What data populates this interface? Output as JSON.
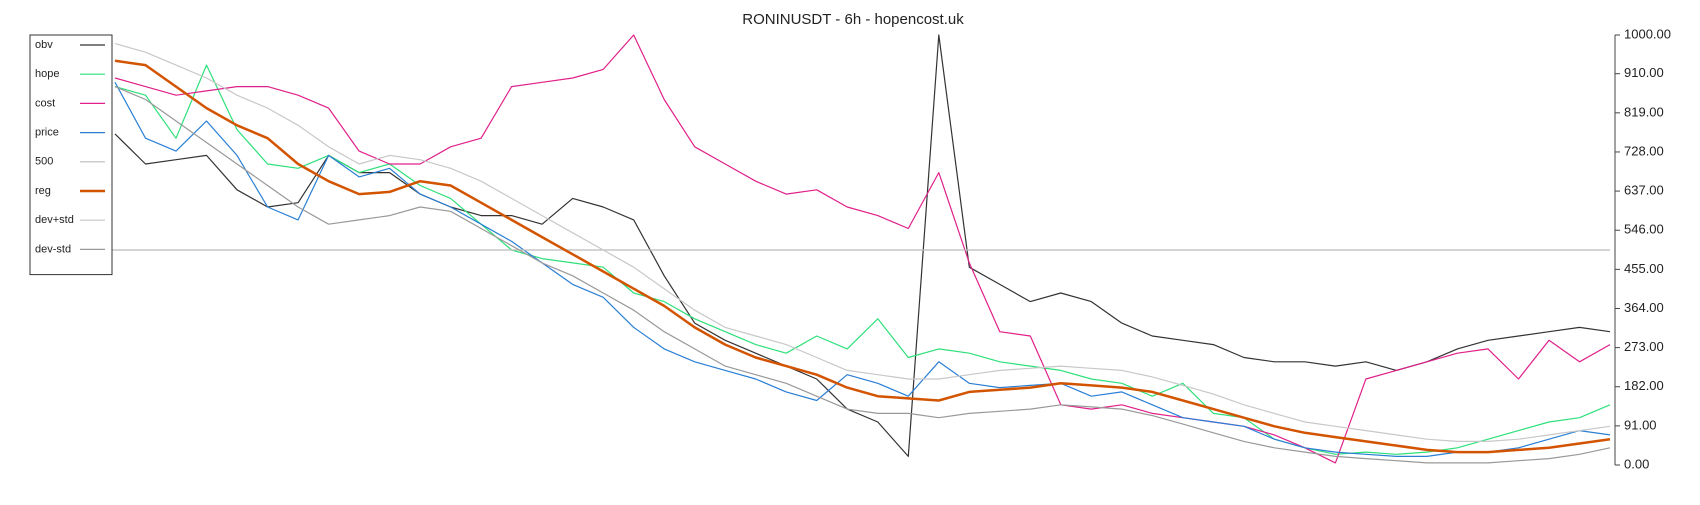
{
  "chart_data": {
    "type": "line",
    "title": "RONINUSDT - 6h - hopencost.uk",
    "ylim": [
      0,
      1000
    ],
    "yticks": [
      {
        "value": 0,
        "label": "0.00"
      },
      {
        "value": 91,
        "label": "91.00"
      },
      {
        "value": 182,
        "label": "182.00"
      },
      {
        "value": 273,
        "label": "273.00"
      },
      {
        "value": 364,
        "label": "364.00"
      },
      {
        "value": 455,
        "label": "455.00"
      },
      {
        "value": 546,
        "label": "546.00"
      },
      {
        "value": 637,
        "label": "637.00"
      },
      {
        "value": 728,
        "label": "728.00"
      },
      {
        "value": 819,
        "label": "819.00"
      },
      {
        "value": 910,
        "label": "910.00"
      },
      {
        "value": 1000,
        "label": "1000.00"
      }
    ],
    "legend": "upper left",
    "series": [
      {
        "name": "obv",
        "color": "#333333",
        "width": 1.2,
        "values": [
          770,
          700,
          710,
          720,
          640,
          600,
          610,
          720,
          680,
          680,
          630,
          600,
          580,
          580,
          560,
          620,
          600,
          570,
          440,
          330,
          290,
          260,
          230,
          200,
          130,
          100,
          20,
          1000,
          460,
          420,
          380,
          400,
          380,
          330,
          300,
          290,
          280,
          250,
          240,
          240,
          230,
          240,
          220,
          240,
          270,
          290,
          300,
          310,
          320,
          310
        ]
      },
      {
        "name": "hope",
        "color": "#2ee07a",
        "width": 1.2,
        "values": [
          880,
          860,
          760,
          930,
          780,
          700,
          690,
          720,
          680,
          700,
          650,
          620,
          560,
          500,
          480,
          470,
          460,
          400,
          380,
          340,
          310,
          280,
          260,
          300,
          270,
          340,
          250,
          270,
          260,
          240,
          230,
          220,
          200,
          190,
          160,
          190,
          120,
          110,
          60,
          40,
          25,
          30,
          25,
          30,
          40,
          60,
          80,
          100,
          110,
          140
        ]
      },
      {
        "name": "cost",
        "color": "#e0208a",
        "width": 1.2,
        "values": [
          900,
          880,
          860,
          870,
          880,
          880,
          860,
          830,
          730,
          700,
          700,
          740,
          760,
          880,
          890,
          900,
          920,
          1000,
          850,
          740,
          700,
          660,
          630,
          640,
          600,
          580,
          550,
          680,
          470,
          310,
          300,
          140,
          130,
          140,
          120,
          110,
          100,
          90,
          70,
          40,
          5,
          200,
          220,
          240,
          260,
          270,
          200,
          290,
          240,
          280
        ]
      },
      {
        "name": "price",
        "color": "#2a7fd4",
        "width": 1.2,
        "values": [
          890,
          760,
          730,
          800,
          720,
          600,
          570,
          720,
          670,
          690,
          630,
          600,
          560,
          520,
          470,
          420,
          390,
          320,
          270,
          240,
          220,
          200,
          170,
          150,
          210,
          190,
          160,
          240,
          190,
          180,
          185,
          190,
          160,
          170,
          140,
          110,
          100,
          90,
          60,
          40,
          30,
          25,
          20,
          20,
          30,
          30,
          40,
          60,
          80,
          70
        ]
      },
      {
        "name": "500",
        "color": "#bbbbbb",
        "width": 1.2,
        "values": [
          500,
          500,
          500,
          500,
          500,
          500,
          500,
          500,
          500,
          500,
          500,
          500,
          500,
          500,
          500,
          500,
          500,
          500,
          500,
          500,
          500,
          500,
          500,
          500,
          500,
          500,
          500,
          500,
          500,
          500,
          500,
          500,
          500,
          500,
          500,
          500,
          500,
          500,
          500,
          500,
          500,
          500,
          500,
          500,
          500,
          500,
          500,
          500,
          500,
          500
        ]
      },
      {
        "name": "reg",
        "color": "#d35400",
        "width": 2.5,
        "values": [
          940,
          930,
          880,
          830,
          790,
          760,
          700,
          660,
          630,
          635,
          660,
          650,
          610,
          570,
          530,
          490,
          450,
          410,
          370,
          320,
          280,
          250,
          230,
          210,
          180,
          160,
          155,
          150,
          170,
          175,
          180,
          190,
          185,
          180,
          170,
          150,
          130,
          110,
          90,
          75,
          65,
          55,
          45,
          35,
          30,
          30,
          35,
          40,
          50,
          60
        ]
      },
      {
        "name": "dev+std",
        "color": "#c8c8c8",
        "width": 1.2,
        "values": [
          980,
          960,
          930,
          900,
          860,
          830,
          790,
          740,
          700,
          720,
          710,
          690,
          660,
          620,
          580,
          540,
          500,
          460,
          410,
          360,
          320,
          300,
          280,
          250,
          220,
          210,
          200,
          200,
          210,
          220,
          225,
          230,
          225,
          220,
          205,
          185,
          165,
          140,
          120,
          100,
          90,
          80,
          70,
          60,
          55,
          55,
          60,
          70,
          80,
          90
        ]
      },
      {
        "name": "dev-std",
        "color": "#999999",
        "width": 1.2,
        "values": [
          880,
          850,
          800,
          750,
          700,
          650,
          600,
          560,
          570,
          580,
          600,
          590,
          550,
          510,
          470,
          440,
          400,
          360,
          310,
          270,
          230,
          210,
          190,
          160,
          130,
          120,
          120,
          110,
          120,
          125,
          130,
          140,
          135,
          130,
          115,
          95,
          75,
          55,
          40,
          30,
          20,
          15,
          10,
          5,
          5,
          5,
          10,
          15,
          25,
          40
        ]
      }
    ]
  }
}
